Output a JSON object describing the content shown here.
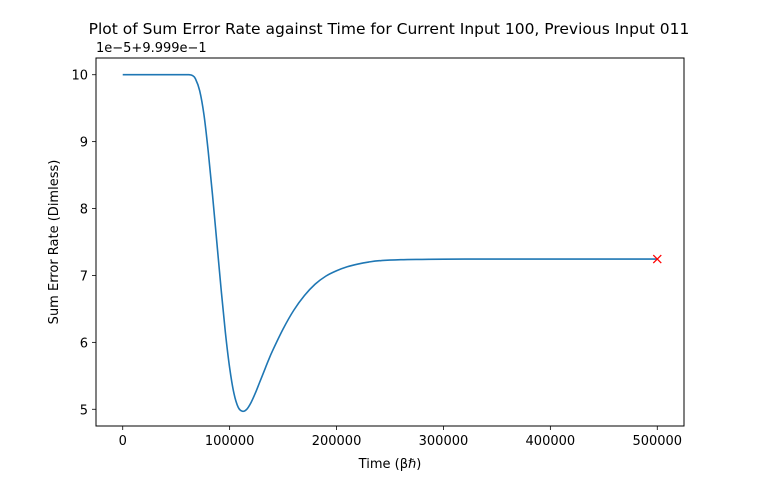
{
  "chart_data": {
    "type": "line",
    "title": "Plot of Sum Error Rate against Time for Current Input 100, Previous Input 011",
    "xlabel": "Time (βℏ)",
    "ylabel": "Sum Error Rate (Dimless)",
    "offset_text": "1e−5+9.999e−1",
    "xlim": [
      -25000,
      525000
    ],
    "ylim": [
      4.75,
      10.25
    ],
    "x_ticks": [
      0,
      100000,
      200000,
      300000,
      400000,
      500000
    ],
    "x_tick_labels": [
      "0",
      "100000",
      "200000",
      "300000",
      "400000",
      "500000"
    ],
    "y_ticks": [
      5,
      6,
      7,
      8,
      9,
      10
    ],
    "y_tick_labels": [
      "5",
      "6",
      "7",
      "8",
      "9",
      "10"
    ],
    "grid": false,
    "series": [
      {
        "color": "#1f77b4",
        "x": [
          0,
          20000,
          40000,
          55000,
          62000,
          65000,
          68000,
          72000,
          76000,
          80000,
          84000,
          88000,
          92000,
          96000,
          100000,
          104000,
          108000,
          112000,
          116000,
          120000,
          124000,
          128000,
          132000,
          136000,
          140000,
          150000,
          160000,
          170000,
          180000,
          190000,
          200000,
          210000,
          220000,
          230000,
          240000,
          260000,
          280000,
          300000,
          330000,
          360000,
          400000,
          450000,
          500000
        ],
        "y": [
          10.0,
          10.0,
          10.0,
          10.0,
          10.0,
          9.99,
          9.94,
          9.76,
          9.4,
          8.85,
          8.2,
          7.5,
          6.8,
          6.15,
          5.62,
          5.24,
          5.03,
          4.97,
          5.0,
          5.1,
          5.24,
          5.4,
          5.56,
          5.72,
          5.87,
          6.2,
          6.48,
          6.7,
          6.87,
          6.99,
          7.07,
          7.13,
          7.17,
          7.2,
          7.22,
          7.235,
          7.24,
          7.243,
          7.245,
          7.245,
          7.245,
          7.245,
          7.245
        ]
      }
    ],
    "end_marker": {
      "x": 500000,
      "y": 7.245,
      "symbol": "×",
      "color": "#ff0000"
    }
  }
}
